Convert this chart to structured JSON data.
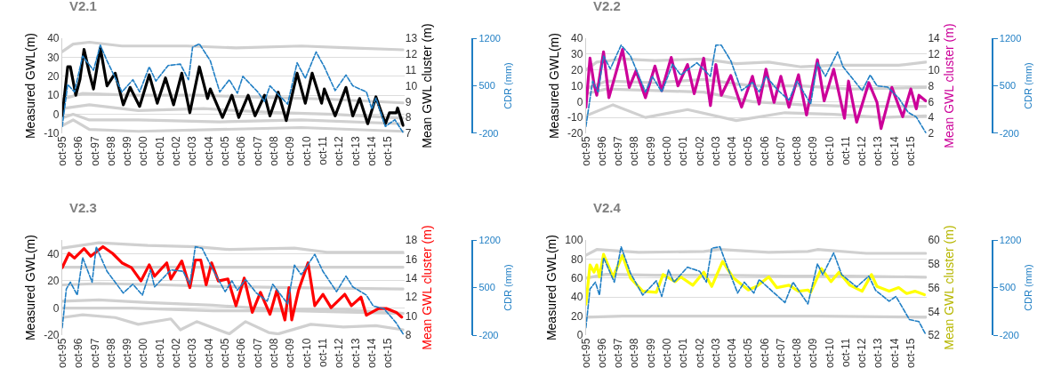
{
  "chart_data": [
    {
      "type": "line",
      "title": "V2.1",
      "ylabel": "Measured GWL(m)",
      "y2label": "Mean GWL cluster (m)",
      "y3label": "CDR (mm)",
      "grid": "y",
      "xlim": [
        "1995-10",
        "2016-10"
      ],
      "xticks": [
        {
          "value": "1995-10",
          "label": "oct-95"
        },
        {
          "value": "1996-10",
          "label": "oct-96"
        },
        {
          "value": "1997-10",
          "label": "oct-97"
        },
        {
          "value": "1998-10",
          "label": "oct-98"
        },
        {
          "value": "1999-10",
          "label": "oct-99"
        },
        {
          "value": "2000-10",
          "label": "oct-00"
        },
        {
          "value": "2001-10",
          "label": "oct-01"
        },
        {
          "value": "2002-10",
          "label": "oct-02"
        },
        {
          "value": "2003-10",
          "label": "oct-03"
        },
        {
          "value": "2004-10",
          "label": "oct-04"
        },
        {
          "value": "2005-10",
          "label": "oct-05"
        },
        {
          "value": "2006-10",
          "label": "oct-06"
        },
        {
          "value": "2007-10",
          "label": "oct-07"
        },
        {
          "value": "2008-10",
          "label": "oct-08"
        },
        {
          "value": "2009-10",
          "label": "oct-09"
        },
        {
          "value": "2010-10",
          "label": "oct-10"
        },
        {
          "value": "2011-10",
          "label": "oct-11"
        },
        {
          "value": "2012-10",
          "label": "oct-12"
        },
        {
          "value": "2013-10",
          "label": "oct-13"
        },
        {
          "value": "2014-10",
          "label": "oct-14"
        },
        {
          "value": "2015-10",
          "label": "oct-15"
        }
      ],
      "ylim": [
        -10,
        40
      ],
      "yticks": [
        -10,
        0,
        10,
        20,
        30,
        40
      ],
      "y2lim": [
        7,
        13
      ],
      "y2ticks": [
        7,
        8,
        9,
        10,
        11,
        12,
        13
      ],
      "y3lim": [
        -200,
        1200
      ],
      "y3ticks": [
        -200,
        500,
        1200
      ],
      "series": [
        {
          "color": "#d0d0d0",
          "x": [
            "1995-10",
            "1996-06",
            "1997-06",
            "1999-06",
            "2003-06",
            "2006-06",
            "2010-06",
            "2013-06",
            "2016-09"
          ],
          "values": [
            33,
            37,
            38,
            36,
            36,
            35,
            36,
            35,
            34
          ]
        },
        {
          "color": "#d0d0d0",
          "x": [
            "1995-10",
            "1997-01",
            "2000-01",
            "2004-01",
            "2008-01",
            "2012-01",
            "2016-09"
          ],
          "values": [
            8,
            11,
            10,
            10,
            9,
            8,
            6
          ]
        },
        {
          "color": "#d0d0d0",
          "x": [
            "1995-10",
            "1997-06",
            "2000-06",
            "2004-06",
            "2008-06",
            "2012-06",
            "2016-09"
          ],
          "values": [
            3,
            5,
            2,
            3,
            1,
            0,
            -2
          ]
        },
        {
          "color": "#d0d0d0",
          "x": [
            "1995-10",
            "1996-06",
            "1997-06",
            "2000-06",
            "2005-06",
            "2010-06",
            "2016-09"
          ],
          "values": [
            -2,
            0,
            -3,
            -3,
            -4,
            -3,
            -5
          ]
        },
        {
          "color": "#d0d0d0",
          "x": [
            "1995-10",
            "1996-06",
            "1997-06",
            "2000-06",
            "2005-06",
            "2010-06",
            "2016-09"
          ],
          "values": [
            -6,
            -3,
            -8,
            -9,
            -8,
            -7,
            -9
          ]
        },
        {
          "color": "#000000",
          "axis": "y2",
          "x": [
            "1995-10",
            "1996-02",
            "1996-04",
            "1996-08",
            "1996-11",
            "1997-02",
            "1997-06",
            "1997-09",
            "1998-02",
            "1998-07",
            "1999-01",
            "1999-07",
            "1999-12",
            "2000-07",
            "2001-02",
            "2001-08",
            "2002-02",
            "2002-08",
            "2003-02",
            "2003-08",
            "2004-03",
            "2004-09",
            "2004-11",
            "2005-08",
            "2006-03",
            "2006-08",
            "2007-03",
            "2007-08",
            "2008-03",
            "2008-07",
            "2009-01",
            "2009-07",
            "2010-03",
            "2010-09",
            "2011-02",
            "2011-09",
            "2011-11",
            "2012-07",
            "2013-03",
            "2013-08",
            "2014-01",
            "2014-07",
            "2015-01",
            "2015-08",
            "2015-11",
            "2016-04",
            "2016-05",
            "2016-09"
          ],
          "values": [
            8.1,
            11.2,
            11.2,
            9.4,
            10.4,
            12.3,
            10.8,
            9.8,
            12.4,
            10.0,
            10.8,
            8.8,
            9.9,
            8.7,
            10.7,
            8.9,
            10.5,
            8.8,
            10.8,
            8.3,
            11.2,
            9.2,
            9.8,
            8.0,
            9.4,
            8.0,
            9.4,
            8.1,
            9.4,
            8.1,
            9.6,
            7.8,
            10.8,
            8.9,
            10.8,
            8.9,
            9.8,
            8.1,
            9.9,
            8.1,
            9.2,
            7.6,
            9.3,
            7.6,
            8.3,
            8.3,
            8.6,
            7.5
          ]
        },
        {
          "color": "#1f7ec4",
          "axis": "y3",
          "line_style": "dashed",
          "x": [
            "1995-10",
            "1996-02",
            "1996-07",
            "1997-01",
            "1997-09",
            "1998-02",
            "1998-07",
            "1999-06",
            "2000-02",
            "2000-07",
            "2001-02",
            "2001-07",
            "2002-04",
            "2003-01",
            "2003-07",
            "2003-10",
            "2004-03",
            "2004-11",
            "2005-06",
            "2006-01",
            "2006-07",
            "2006-11",
            "2007-10",
            "2008-03",
            "2008-07",
            "2009-08",
            "2010-03",
            "2010-09",
            "2011-05",
            "2011-11",
            "2012-07",
            "2013-03",
            "2013-08",
            "2014-06",
            "2014-10",
            "2015-01",
            "2015-08",
            "2016-03",
            "2016-09"
          ],
          "values": [
            -100,
            520,
            410,
            940,
            730,
            1100,
            870,
            410,
            590,
            410,
            780,
            570,
            800,
            820,
            590,
            1070,
            1120,
            870,
            410,
            590,
            390,
            640,
            410,
            270,
            500,
            230,
            840,
            610,
            1000,
            780,
            430,
            660,
            500,
            410,
            160,
            320,
            -100,
            0,
            -190
          ]
        }
      ]
    },
    {
      "type": "line",
      "title": "V2.2",
      "ylabel": "Measured GWL(m)",
      "y2label": "Mean GWL cluster (m)",
      "y3label": "CDR (mm)",
      "grid": "y",
      "xlim": [
        "1995-10",
        "2016-10"
      ],
      "xticks": [
        {
          "value": "1995-10",
          "label": "oct-95"
        },
        {
          "value": "1996-10",
          "label": "oct-96"
        },
        {
          "value": "1997-10",
          "label": "oct-97"
        },
        {
          "value": "1998-10",
          "label": "oct-98"
        },
        {
          "value": "1999-10",
          "label": "oct-99"
        },
        {
          "value": "2000-10",
          "label": "oct-00"
        },
        {
          "value": "2001-10",
          "label": "oct-01"
        },
        {
          "value": "2002-10",
          "label": "oct-02"
        },
        {
          "value": "2003-10",
          "label": "oct-03"
        },
        {
          "value": "2004-10",
          "label": "oct-04"
        },
        {
          "value": "2005-10",
          "label": "oct-05"
        },
        {
          "value": "2006-10",
          "label": "oct-06"
        },
        {
          "value": "2007-10",
          "label": "oct-07"
        },
        {
          "value": "2008-10",
          "label": "oct-08"
        },
        {
          "value": "2009-10",
          "label": "oct-09"
        },
        {
          "value": "2010-10",
          "label": "oct-10"
        },
        {
          "value": "2011-10",
          "label": "oct-11"
        },
        {
          "value": "2012-10",
          "label": "oct-12"
        },
        {
          "value": "2013-10",
          "label": "oct-13"
        },
        {
          "value": "2014-10",
          "label": "oct-14"
        },
        {
          "value": "2015-10",
          "label": "oct-15"
        }
      ],
      "ylim": [
        -20,
        40
      ],
      "yticks": [
        -20,
        -10,
        0,
        10,
        20,
        30,
        40
      ],
      "y2lim": [
        2,
        14
      ],
      "y2ticks": [
        2,
        4,
        6,
        8,
        10,
        12,
        14
      ],
      "y3lim": [
        -200,
        1200
      ],
      "y3ticks": [
        -200,
        500,
        1200
      ],
      "series": [
        {
          "color": "#d0d0d0",
          "x": [
            "1995-10",
            "1996-06",
            "1998-01",
            "2000-01",
            "2003-01",
            "2005-01",
            "2007-01",
            "2009-01",
            "2011-01",
            "2013-01",
            "2015-01",
            "2016-09"
          ],
          "values": [
            20,
            25,
            27,
            26,
            27,
            24,
            25,
            22,
            23,
            23,
            23,
            25
          ]
        },
        {
          "color": "#d0d0d0",
          "x": [
            "1995-10",
            "1997-01",
            "2000-01",
            "2003-01",
            "2006-01",
            "2009-01",
            "2012-01",
            "2016-09"
          ],
          "values": [
            8,
            13,
            12,
            14,
            10,
            10,
            8,
            9
          ]
        },
        {
          "color": "#d0d0d0",
          "x": [
            "1995-10",
            "1997-01",
            "2000-01",
            "2003-01",
            "2006-01",
            "2009-01",
            "2012-01",
            "2016-09"
          ],
          "values": [
            5,
            8,
            7,
            6,
            0,
            -2,
            -3,
            -3
          ]
        },
        {
          "color": "#d0d0d0",
          "x": [
            "1995-10",
            "1997-06",
            "1999-06",
            "2002-01",
            "2005-01",
            "2008-01",
            "2011-01",
            "2014-01",
            "2016-09"
          ],
          "values": [
            -9,
            -2,
            -10,
            -5,
            -12,
            -7,
            -8,
            -10,
            -9
          ]
        },
        {
          "color": "#cc0099",
          "axis": "y2",
          "x": [
            "1995-10",
            "1996-01",
            "1996-04",
            "1996-06",
            "1996-11",
            "1997-03",
            "1998-01",
            "1998-06",
            "1998-11",
            "1999-06",
            "2000-01",
            "2000-06",
            "2001-01",
            "2001-06",
            "2002-01",
            "2002-06",
            "2003-01",
            "2003-06",
            "2003-10",
            "2004-02",
            "2004-09",
            "2005-05",
            "2006-01",
            "2006-06",
            "2006-11",
            "2007-05",
            "2007-10",
            "2008-04",
            "2008-11",
            "2009-05",
            "2010-01",
            "2010-06",
            "2011-01",
            "2011-09",
            "2011-12",
            "2012-06",
            "2013-03",
            "2013-09",
            "2013-12",
            "2014-08",
            "2015-04",
            "2015-10",
            "2016-02",
            "2016-04",
            "2016-09"
          ],
          "values": [
            5.3,
            11.5,
            8.2,
            6.8,
            12.3,
            6.5,
            12.6,
            7.8,
            9.9,
            6.5,
            10.5,
            7.4,
            11.6,
            8.0,
            10.7,
            7.0,
            11.5,
            5.5,
            10.7,
            6.8,
            9.3,
            5.3,
            9.2,
            5.7,
            10.1,
            5.9,
            9.2,
            5.3,
            9.4,
            4.3,
            11.3,
            6.1,
            10.1,
            3.9,
            8.6,
            3.4,
            8.4,
            5.9,
            2.6,
            7.8,
            4.1,
            7.6,
            5.1,
            6.8,
            6.1
          ]
        },
        {
          "color": "#1f7ec4",
          "axis": "y3",
          "line_style": "dashed",
          "x": [
            "1995-10",
            "1996-03",
            "1996-07",
            "1996-11",
            "1997-04",
            "1997-12",
            "1998-07",
            "1999-06",
            "1999-11",
            "2000-06",
            "2001-02",
            "2001-08",
            "2002-08",
            "2003-06",
            "2003-10",
            "2004-02",
            "2004-09",
            "2005-05",
            "2006-01",
            "2006-06",
            "2006-11",
            "2007-08",
            "2008-04",
            "2008-10",
            "2009-08",
            "2010-01",
            "2010-07",
            "2011-04",
            "2011-08",
            "2012-10",
            "2013-04",
            "2013-09",
            "2014-05",
            "2015-01",
            "2015-08",
            "2016-02",
            "2016-09"
          ],
          "values": [
            -100,
            570,
            410,
            940,
            750,
            1100,
            940,
            410,
            640,
            410,
            820,
            660,
            840,
            640,
            1100,
            1100,
            870,
            430,
            550,
            410,
            640,
            430,
            290,
            570,
            230,
            840,
            640,
            1000,
            780,
            430,
            660,
            500,
            480,
            320,
            110,
            40,
            -190
          ]
        }
      ]
    },
    {
      "type": "line",
      "title": "V2.3",
      "ylabel": "Measured GWL(m)",
      "y2label": "Mean GWL cluster (m)",
      "y3label": "CDR (mm)",
      "grid": "y",
      "xlim": [
        "1995-10",
        "2016-10"
      ],
      "xticks": [
        {
          "value": "1995-10",
          "label": "oct-95"
        },
        {
          "value": "1996-10",
          "label": "oct-96"
        },
        {
          "value": "1997-10",
          "label": "oct-97"
        },
        {
          "value": "1998-10",
          "label": "oct-98"
        },
        {
          "value": "1999-10",
          "label": "oct-99"
        },
        {
          "value": "2000-10",
          "label": "oct-00"
        },
        {
          "value": "2001-10",
          "label": "oct-01"
        },
        {
          "value": "2002-10",
          "label": "oct-02"
        },
        {
          "value": "2003-10",
          "label": "oct-03"
        },
        {
          "value": "2004-10",
          "label": "oct-04"
        },
        {
          "value": "2005-10",
          "label": "oct-05"
        },
        {
          "value": "2006-10",
          "label": "oct-06"
        },
        {
          "value": "2007-10",
          "label": "oct-07"
        },
        {
          "value": "2008-10",
          "label": "oct-08"
        },
        {
          "value": "2009-10",
          "label": "oct-09"
        },
        {
          "value": "2010-10",
          "label": "oct-10"
        },
        {
          "value": "2011-10",
          "label": "oct-11"
        },
        {
          "value": "2012-10",
          "label": "oct-12"
        },
        {
          "value": "2013-10",
          "label": "oct-13"
        },
        {
          "value": "2014-10",
          "label": "oct-14"
        },
        {
          "value": "2015-10",
          "label": "oct-15"
        }
      ],
      "ylim": [
        -20,
        50
      ],
      "yticks": [
        -20,
        0,
        20,
        40
      ],
      "y2lim": [
        8,
        18
      ],
      "y2ticks": [
        8,
        10,
        12,
        14,
        16,
        18
      ],
      "y3lim": [
        -200,
        1200
      ],
      "y3ticks": [
        -200,
        500,
        1200
      ],
      "series": [
        {
          "color": "#d0d0d0",
          "x": [
            "1995-10",
            "1998-01",
            "2001-01",
            "2004-01",
            "2006-01",
            "2010-01",
            "2012-01",
            "2016-09"
          ],
          "values": [
            44,
            48,
            46,
            45,
            43,
            44,
            41,
            41
          ]
        },
        {
          "color": "#d0d0d0",
          "x": [
            "1995-10",
            "2005-01",
            "2016-09"
          ],
          "values": [
            30,
            30,
            30
          ]
        },
        {
          "color": "#d0d0d0",
          "x": [
            "1995-10",
            "1998-01",
            "2002-01",
            "2005-01",
            "2010-01",
            "2016-09"
          ],
          "values": [
            17,
            18,
            17,
            16,
            15,
            14
          ]
        },
        {
          "color": "#d0d0d0",
          "x": [
            "1995-10",
            "1998-01",
            "2001-01",
            "2005-01",
            "2009-01",
            "2013-01",
            "2016-09"
          ],
          "values": [
            5,
            6,
            4,
            2,
            -1,
            -1,
            -4
          ]
        },
        {
          "color": "#d0d0d0",
          "x": [
            "1995-10",
            "2000-01",
            "2005-01",
            "2010-01",
            "2016-09"
          ],
          "values": [
            0,
            0,
            -2,
            -2,
            -4
          ]
        },
        {
          "color": "#d0d0d0",
          "x": [
            "1995-10",
            "1997-01",
            "1999-01",
            "2000-06",
            "2002-06",
            "2003-01",
            "2004-01",
            "2006-01",
            "2007-01",
            "2008-06",
            "2009-01",
            "2011-01",
            "2013-01",
            "2015-01",
            "2016-09"
          ],
          "values": [
            -7,
            -5,
            -7,
            -12,
            -8,
            -16,
            -10,
            -19,
            -10,
            -18,
            -19,
            -12,
            -14,
            -13,
            -16
          ]
        },
        {
          "color": "#ff0000",
          "axis": "y2",
          "x": [
            "1995-10",
            "1996-03",
            "1996-07",
            "1997-02",
            "1997-07",
            "1998-04",
            "1998-11",
            "1999-06",
            "2000-01",
            "2000-08",
            "2001-02",
            "2001-06",
            "2002-03",
            "2002-06",
            "2003-02",
            "2003-08",
            "2003-12",
            "2004-04",
            "2004-08",
            "2004-12",
            "2005-05",
            "2005-12",
            "2006-06",
            "2006-12",
            "2007-06",
            "2007-12",
            "2008-07",
            "2008-12",
            "2009-06",
            "2009-09",
            "2009-11",
            "2010-04",
            "2010-11",
            "2011-04",
            "2011-10",
            "2012-04",
            "2013-02",
            "2013-07",
            "2014-02",
            "2014-06",
            "2015-03",
            "2015-09",
            "2016-04",
            "2016-08"
          ],
          "values": [
            15.1,
            16.6,
            16.1,
            17.1,
            16.3,
            17.3,
            16.6,
            15.6,
            15.1,
            13.7,
            15.4,
            14.2,
            15.6,
            13.9,
            15.8,
            13.0,
            15.9,
            15.9,
            13.3,
            15.6,
            13.7,
            13.9,
            11.1,
            14.0,
            10.4,
            12.5,
            10.2,
            12.7,
            9.6,
            13.0,
            9.6,
            12.7,
            15.6,
            11.1,
            12.3,
            10.9,
            12.3,
            11.1,
            12.0,
            10.1,
            10.8,
            10.8,
            10.4,
            9.9
          ]
        },
        {
          "color": "#1f7ec4",
          "axis": "y3",
          "line_style": "dashed",
          "x": [
            "1995-10",
            "1996-01",
            "1996-04",
            "1996-09",
            "1997-01",
            "1997-08",
            "1997-11",
            "1998-07",
            "1999-07",
            "2000-02",
            "2000-09",
            "2001-03",
            "2001-06",
            "2002-06",
            "2003-03",
            "2003-08",
            "2003-12",
            "2004-05",
            "2005-01",
            "2005-10",
            "2006-03",
            "2006-07",
            "2007-01",
            "2007-09",
            "2008-05",
            "2008-09",
            "2009-08",
            "2010-01",
            "2010-06",
            "2011-04",
            "2011-10",
            "2012-08",
            "2013-03",
            "2013-08",
            "2014-06",
            "2014-11",
            "2015-07",
            "2016-04",
            "2016-09"
          ],
          "values": [
            -90,
            480,
            580,
            390,
            940,
            580,
            1100,
            740,
            420,
            550,
            390,
            760,
            510,
            760,
            740,
            550,
            1100,
            1080,
            760,
            440,
            600,
            460,
            620,
            420,
            300,
            550,
            260,
            830,
            690,
            990,
            740,
            440,
            670,
            510,
            390,
            230,
            190,
            -20,
            -180
          ]
        }
      ]
    },
    {
      "type": "line",
      "title": "V2.4",
      "ylabel": "Measured GWL(m)",
      "y2label": "Mean GWL cluster (m)",
      "y3label": "CDR (mm)",
      "grid": "y",
      "xlim": [
        "1995-10",
        "2016-10"
      ],
      "xticks": [
        {
          "value": "1995-10",
          "label": "oct-95"
        },
        {
          "value": "1996-10",
          "label": "oct-96"
        },
        {
          "value": "1997-10",
          "label": "oct-97"
        },
        {
          "value": "1998-10",
          "label": "oct-98"
        },
        {
          "value": "1999-10",
          "label": "oct-99"
        },
        {
          "value": "2000-10",
          "label": "oct-00"
        },
        {
          "value": "2001-10",
          "label": "oct-01"
        },
        {
          "value": "2002-10",
          "label": "oct-02"
        },
        {
          "value": "2003-10",
          "label": "oct-03"
        },
        {
          "value": "2004-10",
          "label": "oct-04"
        },
        {
          "value": "2005-10",
          "label": "oct-05"
        },
        {
          "value": "2006-10",
          "label": "oct-06"
        },
        {
          "value": "2007-10",
          "label": "oct-07"
        },
        {
          "value": "2008-10",
          "label": "oct-08"
        },
        {
          "value": "2009-10",
          "label": "oct-09"
        },
        {
          "value": "2010-10",
          "label": "oct-10"
        },
        {
          "value": "2011-10",
          "label": "oct-11"
        },
        {
          "value": "2012-10",
          "label": "oct-12"
        },
        {
          "value": "2013-10",
          "label": "oct-13"
        },
        {
          "value": "2014-10",
          "label": "oct-14"
        },
        {
          "value": "2015-10",
          "label": "oct-15"
        }
      ],
      "ylim": [
        0,
        100
      ],
      "yticks": [
        0,
        20,
        40,
        60,
        80,
        100
      ],
      "y2lim": [
        52,
        60
      ],
      "y2ticks": [
        52,
        54,
        56,
        58,
        60
      ],
      "y3lim": [
        -200,
        1200
      ],
      "y3ticks": [
        -200,
        500,
        1200
      ],
      "series": [
        {
          "color": "#d0d0d0",
          "x": [
            "1995-10",
            "1996-06",
            "1999-01",
            "2003-01",
            "2004-01",
            "2007-01",
            "2009-06",
            "2010-01",
            "2013-01",
            "2016-09"
          ],
          "values": [
            84,
            90,
            87,
            88,
            90,
            87,
            88,
            90,
            86,
            86
          ]
        },
        {
          "color": "#d0d0d0",
          "x": [
            "1995-10",
            "1997-01",
            "2000-01",
            "2004-01",
            "2008-01",
            "2012-01",
            "2016-09"
          ],
          "values": [
            60,
            64,
            63,
            63,
            62,
            62,
            61
          ]
        },
        {
          "color": "#d0d0d0",
          "x": [
            "1995-10",
            "1998-01",
            "2005-01",
            "2010-01",
            "2016-09"
          ],
          "values": [
            19,
            20,
            20,
            20,
            19
          ]
        },
        {
          "color": "#ffff00",
          "axis": "y2",
          "x": [
            "1995-10",
            "1996-01",
            "1996-04",
            "1996-06",
            "1996-08",
            "1996-11",
            "1997-06",
            "1998-01",
            "1998-07",
            "1999-04",
            "2000-02",
            "2000-07",
            "2001-04",
            "2001-08",
            "2002-05",
            "2003-01",
            "2003-07",
            "2004-03",
            "2004-11",
            "2005-10",
            "2006-04",
            "2007-01",
            "2007-07",
            "2008-04",
            "2008-11",
            "2009-06",
            "2009-08",
            "2010-04",
            "2010-11",
            "2011-05",
            "2012-01",
            "2012-10",
            "2013-05",
            "2013-09",
            "2014-06",
            "2015-01",
            "2015-07",
            "2016-01",
            "2016-08"
          ],
          "values": [
            54.6,
            57.9,
            57.3,
            57.9,
            56.9,
            58.8,
            56.9,
            58.7,
            56.8,
            55.7,
            55.6,
            57.1,
            56.5,
            56.9,
            56.2,
            57.3,
            56.1,
            58.2,
            56.8,
            55.8,
            56.1,
            56.9,
            56.0,
            56.2,
            55.7,
            55.8,
            55.6,
            57.6,
            56.5,
            57.3,
            56.2,
            55.7,
            57.1,
            56.1,
            55.7,
            56.0,
            55.5,
            55.7,
            55.4
          ]
        },
        {
          "color": "#1f7ec4",
          "axis": "y3",
          "line_style": "dashed",
          "x": [
            "1995-10",
            "1996-01",
            "1996-05",
            "1996-08",
            "1996-11",
            "1997-07",
            "1997-12",
            "1998-07",
            "1999-04",
            "2000-02",
            "2000-06",
            "2000-11",
            "2001-03",
            "2002-01",
            "2002-10",
            "2003-03",
            "2003-07",
            "2004-01",
            "2004-07",
            "2005-02",
            "2005-07",
            "2006-02",
            "2006-06",
            "2007-04",
            "2008-01",
            "2008-07",
            "2009-06",
            "2010-01",
            "2010-05",
            "2011-01",
            "2011-07",
            "2012-06",
            "2013-03",
            "2013-08",
            "2014-06",
            "2014-11",
            "2015-09",
            "2016-04",
            "2016-09"
          ],
          "values": [
            -90,
            480,
            580,
            390,
            940,
            580,
            1100,
            710,
            390,
            600,
            370,
            760,
            580,
            800,
            740,
            580,
            1080,
            1100,
            780,
            420,
            580,
            420,
            620,
            440,
            280,
            580,
            260,
            850,
            690,
            1010,
            690,
            510,
            670,
            460,
            300,
            370,
            30,
            0,
            -190
          ]
        }
      ]
    }
  ]
}
